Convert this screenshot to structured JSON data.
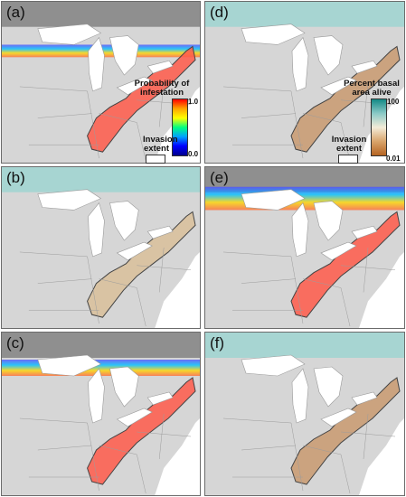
{
  "panels": [
    {
      "label": "(a)",
      "kind": "probability",
      "invaded": "prob-high",
      "front": "band-mid"
    },
    {
      "label": "(b)",
      "kind": "probability",
      "invaded": "prob-high",
      "front": "band-north"
    },
    {
      "label": "(c)",
      "kind": "probability",
      "invaded": "prob-high",
      "front": "band-wide"
    },
    {
      "label": "(d)",
      "kind": "basal",
      "invaded": "basal-mid",
      "front": "none"
    },
    {
      "label": "(e)",
      "kind": "basal",
      "invaded": "basal-low",
      "front": "none"
    },
    {
      "label": "(f)",
      "kind": "basal",
      "invaded": "basal-low",
      "front": "none"
    }
  ],
  "legend_probability": {
    "title": "Probability of infestation",
    "max": "1.0",
    "min": "0.0",
    "colors": [
      "#ff0000",
      "#ffa500",
      "#ffff00",
      "#00ff80",
      "#00a0ff",
      "#0000ff",
      "#00008b"
    ]
  },
  "legend_basal": {
    "title": "Percent basal area alive",
    "max": "100",
    "min": "0.01",
    "colors": [
      "#138a86",
      "#8ac9c6",
      "#f3ecd8",
      "#d9a46b",
      "#b56422"
    ]
  },
  "extent_legend": {
    "title": "Invasion extent"
  }
}
